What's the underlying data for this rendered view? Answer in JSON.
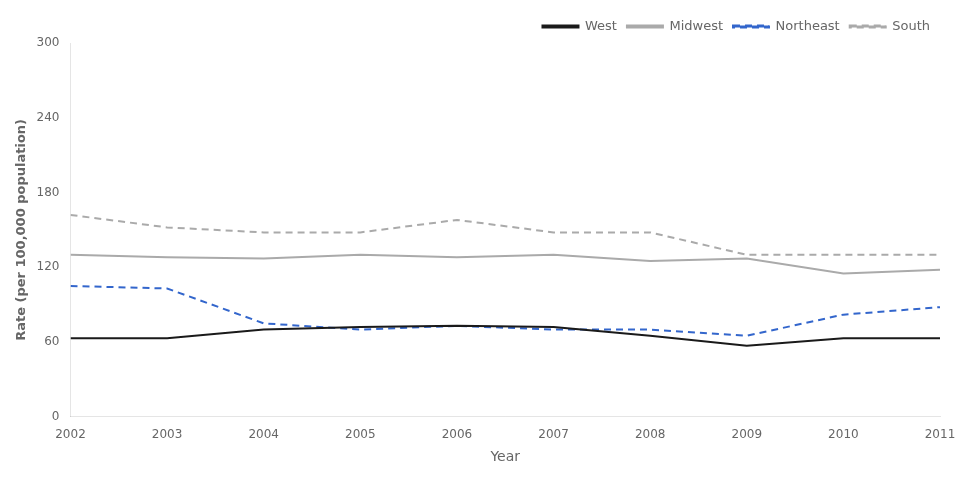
{
  "chart_data": {
    "type": "line",
    "xlabel": "Year",
    "ylabel": "Rate (per 100,000 population)",
    "x": [
      2002,
      2003,
      2004,
      2005,
      2006,
      2007,
      2008,
      2009,
      2010,
      2011
    ],
    "series": [
      {
        "name": "West",
        "color": "#1a1a1a",
        "line_style": "solid",
        "values": [
          63,
          63,
          70,
          72,
          73,
          72,
          65,
          57,
          63,
          63
        ]
      },
      {
        "name": "Midwest",
        "color": "#aaaaaa",
        "line_style": "solid",
        "values": [
          130,
          128,
          127,
          130,
          128,
          130,
          125,
          127,
          115,
          118
        ]
      },
      {
        "name": "Northeast",
        "color": "#3366cc",
        "line_style": "dashed",
        "values": [
          105,
          103,
          75,
          70,
          73,
          70,
          70,
          65,
          82,
          88
        ]
      },
      {
        "name": "South",
        "color": "#aaaaaa",
        "line_style": "dashed",
        "values": [
          162,
          152,
          148,
          148,
          158,
          148,
          148,
          130,
          130,
          130
        ]
      }
    ],
    "xlim": [
      2002,
      2011
    ],
    "xticks": [
      2002,
      2003,
      2004,
      2005,
      2006,
      2007,
      2008,
      2009,
      2010,
      2011
    ],
    "ylim": [
      0,
      300
    ],
    "yticks": [
      0,
      60,
      120,
      180,
      240,
      300
    ],
    "grid": false,
    "legend": "upper right"
  }
}
